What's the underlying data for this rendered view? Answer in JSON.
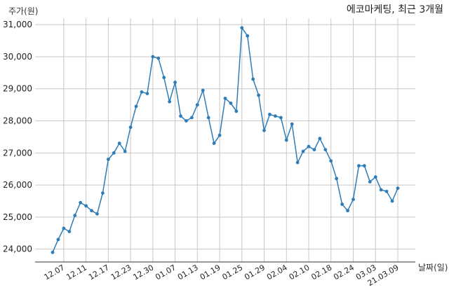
{
  "chart_data": {
    "type": "line",
    "title": "에코마케팅, 최근 3개월",
    "ylabel": "주가(원)",
    "xlabel": "날짜(일)",
    "ylim": [
      23600,
      31200
    ],
    "yticks": [
      24000,
      25000,
      26000,
      27000,
      28000,
      29000,
      30000,
      31000
    ],
    "ytick_labels": [
      "24,000",
      "25,000",
      "26,000",
      "27,000",
      "28,000",
      "29,000",
      "30,000",
      "31,000"
    ],
    "xtick_labels": [
      "12.07",
      "12.11",
      "12.17",
      "12.23",
      "12.30",
      "01.07",
      "01.13",
      "01.19",
      "01.25",
      "01.29",
      "02.04",
      "02.10",
      "02.18",
      "02.24",
      "03.03",
      "21.03.09"
    ],
    "xtick_indices": [
      2,
      6,
      10,
      14,
      18,
      22,
      26,
      30,
      34,
      38,
      42,
      46,
      50,
      54,
      58,
      62
    ],
    "grid": true,
    "color": "#2e7db8",
    "values": [
      23900,
      24300,
      24650,
      24550,
      25050,
      25450,
      25350,
      25200,
      25100,
      25750,
      26800,
      27000,
      27300,
      27050,
      27800,
      28450,
      28900,
      28850,
      30000,
      29950,
      29350,
      28600,
      29200,
      28150,
      28000,
      28100,
      28500,
      28950,
      28100,
      27300,
      27550,
      28700,
      28550,
      28300,
      30900,
      30650,
      29300,
      28800,
      27700,
      28200,
      28150,
      28100,
      27400,
      27900,
      26700,
      27050,
      27200,
      27100,
      27450,
      27100,
      26750,
      26200,
      25400,
      25200,
      25550,
      26600,
      26600,
      26100,
      26250,
      25850,
      25800,
      25500,
      25900
    ]
  }
}
